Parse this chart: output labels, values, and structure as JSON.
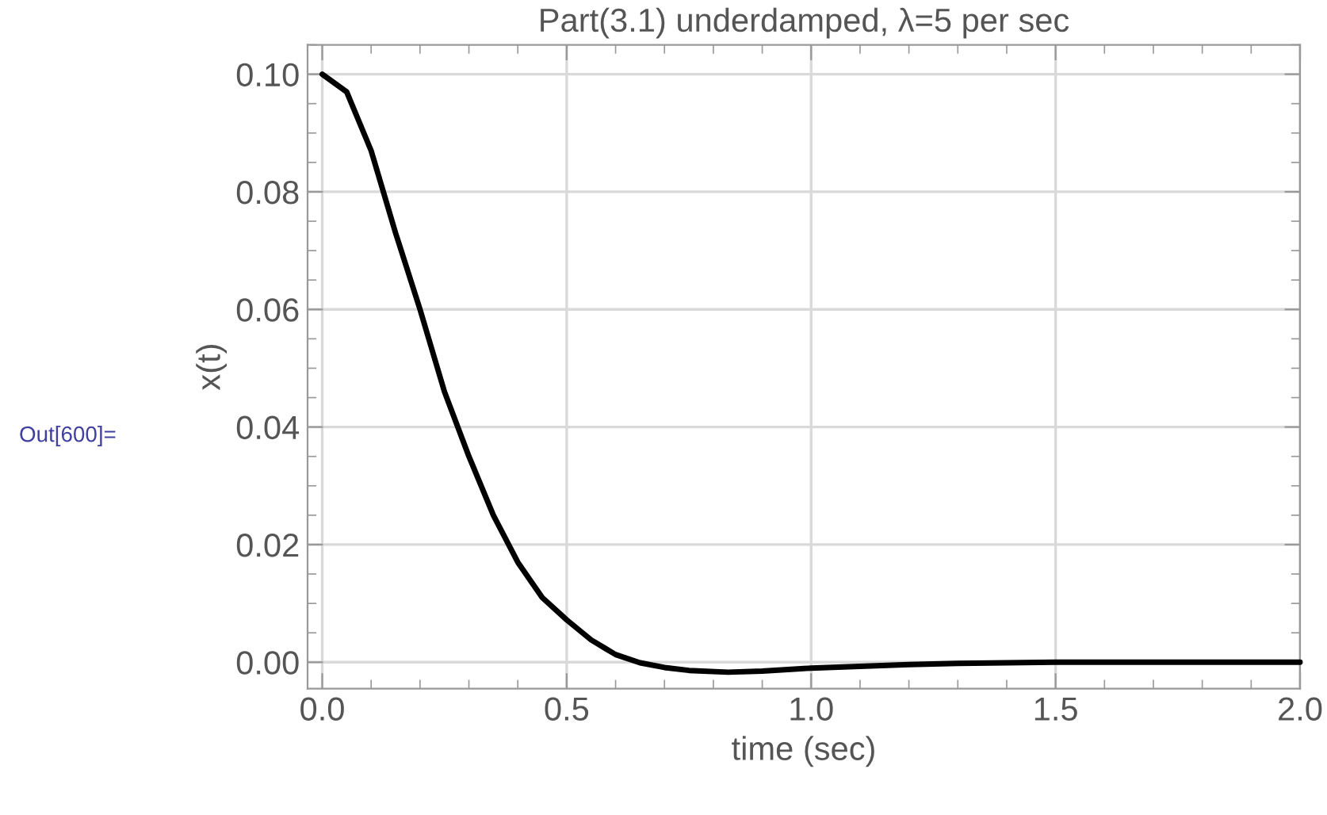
{
  "chart_data": {
    "type": "line",
    "title": "Part(3.1) underdamped, λ=5 per sec",
    "xlabel": "time (sec)",
    "ylabel": "x(t)",
    "annotations": [
      "Out[600]="
    ],
    "series": [
      {
        "color": "#000000",
        "x": [
          0,
          0.05,
          0.1,
          0.15,
          0.2,
          0.25,
          0.3,
          0.35,
          0.4,
          0.45,
          0.5,
          0.55,
          0.6,
          0.65,
          0.7,
          0.75,
          0.83,
          0.9,
          1.0,
          1.1,
          1.2,
          1.3,
          1.4,
          1.5,
          1.75,
          2.0
        ],
        "values": [
          0.1,
          0.097,
          0.087,
          0.073,
          0.06,
          0.046,
          0.035,
          0.025,
          0.017,
          0.011,
          0.0072,
          0.0038,
          0.0013,
          -0.0001,
          -0.0009,
          -0.0014,
          -0.0017,
          -0.0015,
          -0.001,
          -0.0007,
          -0.0004,
          -0.0002,
          -0.0001,
          0,
          0,
          0
        ]
      }
    ],
    "xlim": [
      -0.03,
      2.0
    ],
    "ylim": [
      -0.0045,
      0.105
    ],
    "xticks": [
      {
        "value": 0,
        "label": "0.0"
      },
      0.5,
      {
        "value": 1,
        "label": "1.0"
      },
      1.5,
      {
        "value": 2,
        "label": "2.0"
      }
    ],
    "yticks": [
      {
        "value": 0,
        "label": "0.00"
      },
      {
        "value": 0.02,
        "label": "0.02"
      },
      {
        "value": 0.04,
        "label": "0.04"
      },
      {
        "value": 0.06,
        "label": "0.06"
      },
      {
        "value": 0.08,
        "label": "0.08"
      },
      {
        "value": 0.1,
        "label": "0.10"
      }
    ],
    "grid": true,
    "legend": false
  }
}
